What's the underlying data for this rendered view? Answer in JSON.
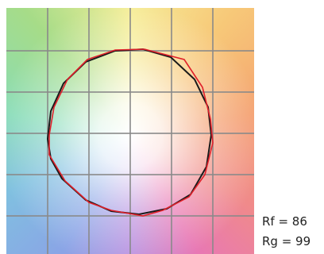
{
  "metrics": {
    "rf": "Rf = 86",
    "rg": "Rg = 99"
  }
}
